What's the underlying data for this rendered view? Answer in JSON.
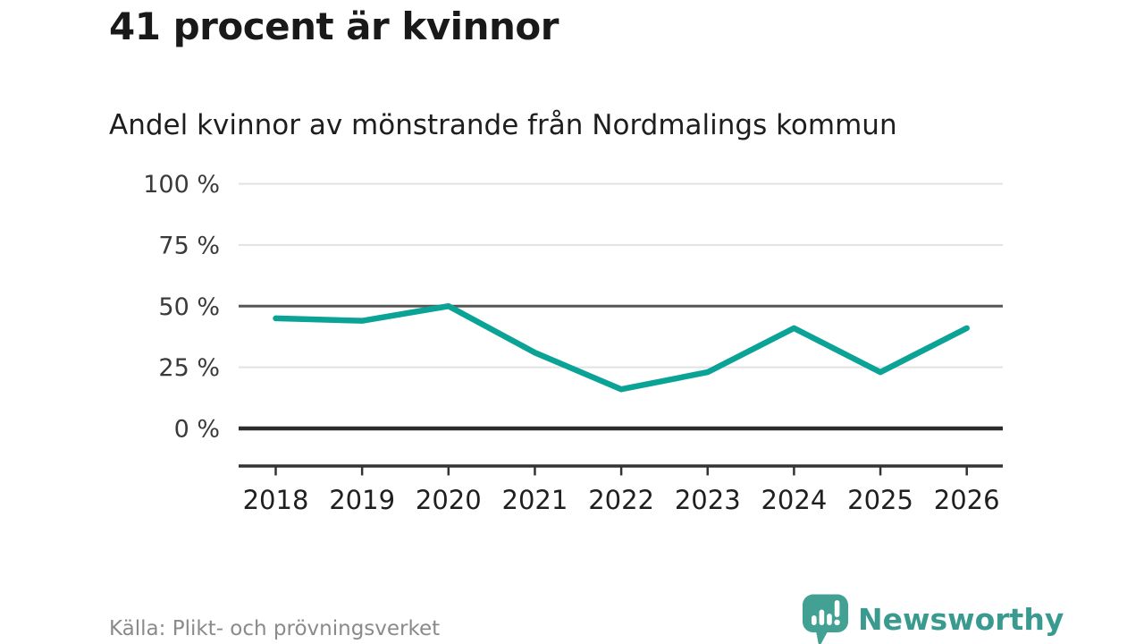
{
  "header": {
    "title": "41 procent är kvinnor",
    "subtitle": "Andel kvinnor av mönstrande från Nordmalings kommun"
  },
  "footer": {
    "source": "Källa: Plikt- och prövningsverket",
    "logo_text": "Newsworthy",
    "logo_icon": "speech-bubble-with-bar-chart-and-exclamation"
  },
  "colors": {
    "line": "#0aa396",
    "grid_light": "#e2e2e2",
    "grid_mid": "#565656",
    "axis_zero": "#2c2c2c",
    "axis": "#333333",
    "title_text": "#191919",
    "subtitle_text": "#1e1e1e",
    "source_text": "#8a8a8a",
    "logo_teal": "#3a9a8f",
    "icon_teal": "#42a193"
  },
  "chart_data": {
    "type": "line",
    "title": "41 procent är kvinnor",
    "subtitle": "Andel kvinnor av mönstrande från Nordmalings kommun",
    "categories": [
      "2018",
      "2019",
      "2020",
      "2021",
      "2022",
      "2023",
      "2024",
      "2025",
      "2026"
    ],
    "series": [
      {
        "name": "Andel kvinnor",
        "values": [
          45,
          44,
          50,
          31,
          16,
          23,
          41,
          23,
          41
        ]
      }
    ],
    "xlabel": "",
    "ylabel": "",
    "ylim": [
      0,
      100
    ],
    "yticks": [
      0,
      25,
      50,
      75,
      100
    ],
    "ytick_format": "{v} %",
    "grid": "horizontal",
    "legend": false,
    "highlighted_gridlines": [
      0,
      50
    ],
    "unit": "%"
  }
}
